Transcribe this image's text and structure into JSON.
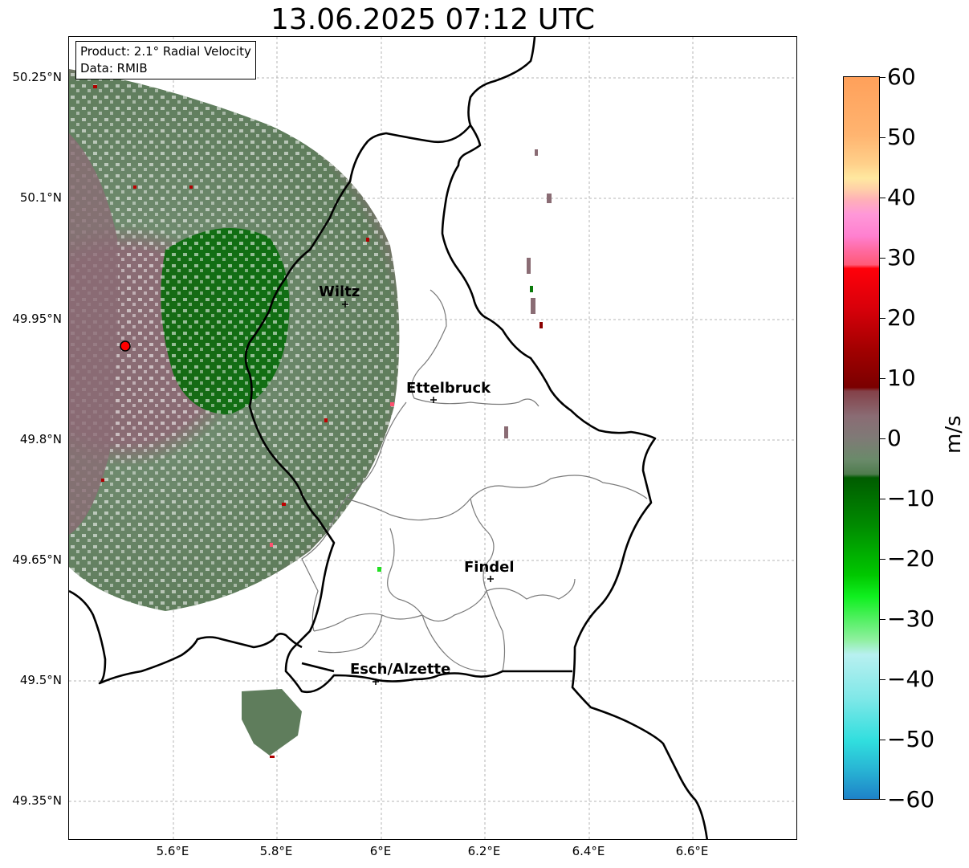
{
  "title": "13.06.2025 07:12 UTC",
  "info": {
    "product": "Product: 2.1° Radial Velocity",
    "data": "Data: RMIB"
  },
  "y_ticks": [
    "50.25°N",
    "50.1°N",
    "49.95°N",
    "49.8°N",
    "49.65°N",
    "49.5°N",
    "49.35°N"
  ],
  "x_ticks": [
    "5.6°E",
    "5.8°E",
    "6°E",
    "6.2°E",
    "6.4°E",
    "6.6°E"
  ],
  "cities": [
    {
      "name": "Wiltz"
    },
    {
      "name": "Ettelbruck"
    },
    {
      "name": "Findel"
    },
    {
      "name": "Esch/Alzette"
    }
  ],
  "colorbar": {
    "label": "m/s",
    "ticks": [
      "60",
      "50",
      "40",
      "30",
      "20",
      "10",
      "0",
      "−10",
      "−20",
      "−30",
      "−40",
      "−50",
      "−60"
    ],
    "range": [
      -60,
      60
    ],
    "colors": {
      "strong_outbound": "#ffa05a",
      "outbound_red": "#e8000a",
      "dark_red": "#7a0000",
      "mauve": "#8a6c74",
      "grey_green": "#6a8a6a",
      "dark_green": "#006400",
      "bright_green": "#00e000",
      "cyan": "#30dede",
      "blue": "#1e82c8"
    }
  }
}
